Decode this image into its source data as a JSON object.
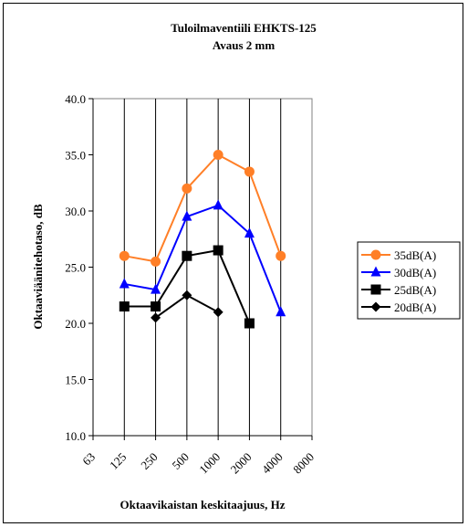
{
  "chart_data": {
    "type": "line",
    "title": "Tuloilmaventiili EHKTS-125",
    "subtitle": "Avaus 2 mm",
    "xlabel": "Oktaavikaistan keskitaajuus, Hz",
    "ylabel": "Oktaaviäänitehotaso, dB",
    "categories": [
      "63",
      "125",
      "250",
      "500",
      "1000",
      "2000",
      "4000",
      "8000"
    ],
    "ylim": [
      10.0,
      40.0
    ],
    "yticks": [
      "10.0",
      "15.0",
      "20.0",
      "25.0",
      "30.0",
      "35.0",
      "40.0"
    ],
    "grid": "vertical",
    "legend": "right",
    "series": [
      {
        "name": "35dB(A)",
        "color": "#ff7f27",
        "marker": "circle",
        "values": [
          null,
          26.0,
          25.5,
          32.0,
          35.0,
          33.5,
          26.0,
          null
        ]
      },
      {
        "name": "30dB(A)",
        "color": "#0000ff",
        "marker": "triangle",
        "values": [
          null,
          23.5,
          23.0,
          29.5,
          30.5,
          28.0,
          21.0,
          null
        ]
      },
      {
        "name": "25dB(A)",
        "color": "#000000",
        "marker": "square",
        "values": [
          null,
          21.5,
          21.5,
          26.0,
          26.5,
          20.0,
          null,
          null
        ]
      },
      {
        "name": "20dB(A)",
        "color": "#000000",
        "marker": "diamond",
        "values": [
          null,
          null,
          20.5,
          22.5,
          21.0,
          null,
          null,
          null
        ]
      }
    ]
  }
}
